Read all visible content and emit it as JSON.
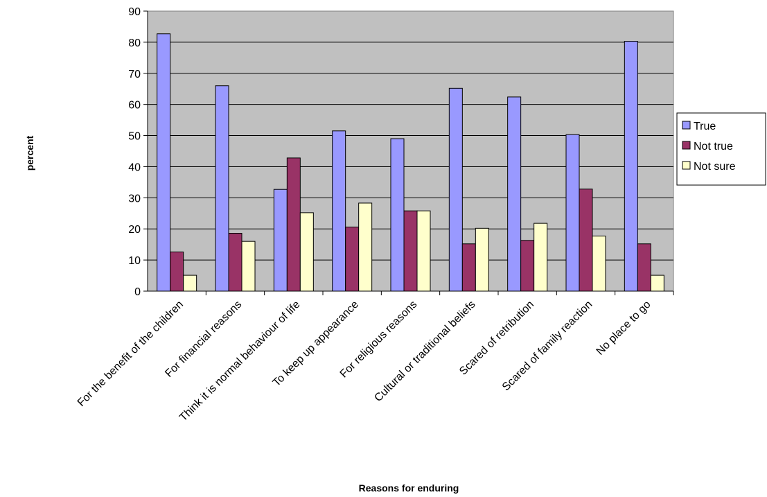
{
  "chart_data": {
    "type": "bar",
    "title": "",
    "xlabel": "Reasons for enduring",
    "ylabel": "percent",
    "ylim": [
      0,
      90
    ],
    "ytick_step": 10,
    "grid": true,
    "legend_position": "right",
    "categories": [
      "For the benefit of the children",
      "For financial reasons",
      "Think it is normal behaviour of life",
      "To keep up appearance",
      "For religious reasons",
      "Cultural or traditional beliefs",
      "Scared of retribution",
      "Scared of family reaction",
      "No place to go"
    ],
    "series": [
      {
        "name": "True",
        "color": "#9999ff",
        "values": [
          82.7,
          66.0,
          32.7,
          51.5,
          49.0,
          65.2,
          62.4,
          50.3,
          80.3
        ]
      },
      {
        "name": "Not true",
        "color": "#993366",
        "values": [
          12.6,
          18.6,
          42.8,
          20.6,
          25.8,
          15.2,
          16.3,
          32.8,
          15.2
        ]
      },
      {
        "name": "Not sure",
        "color": "#ffffcc",
        "values": [
          5.1,
          16.0,
          25.2,
          28.3,
          25.8,
          20.2,
          21.8,
          17.7,
          5.1
        ]
      }
    ],
    "plot_background": "#c0c0c0"
  }
}
